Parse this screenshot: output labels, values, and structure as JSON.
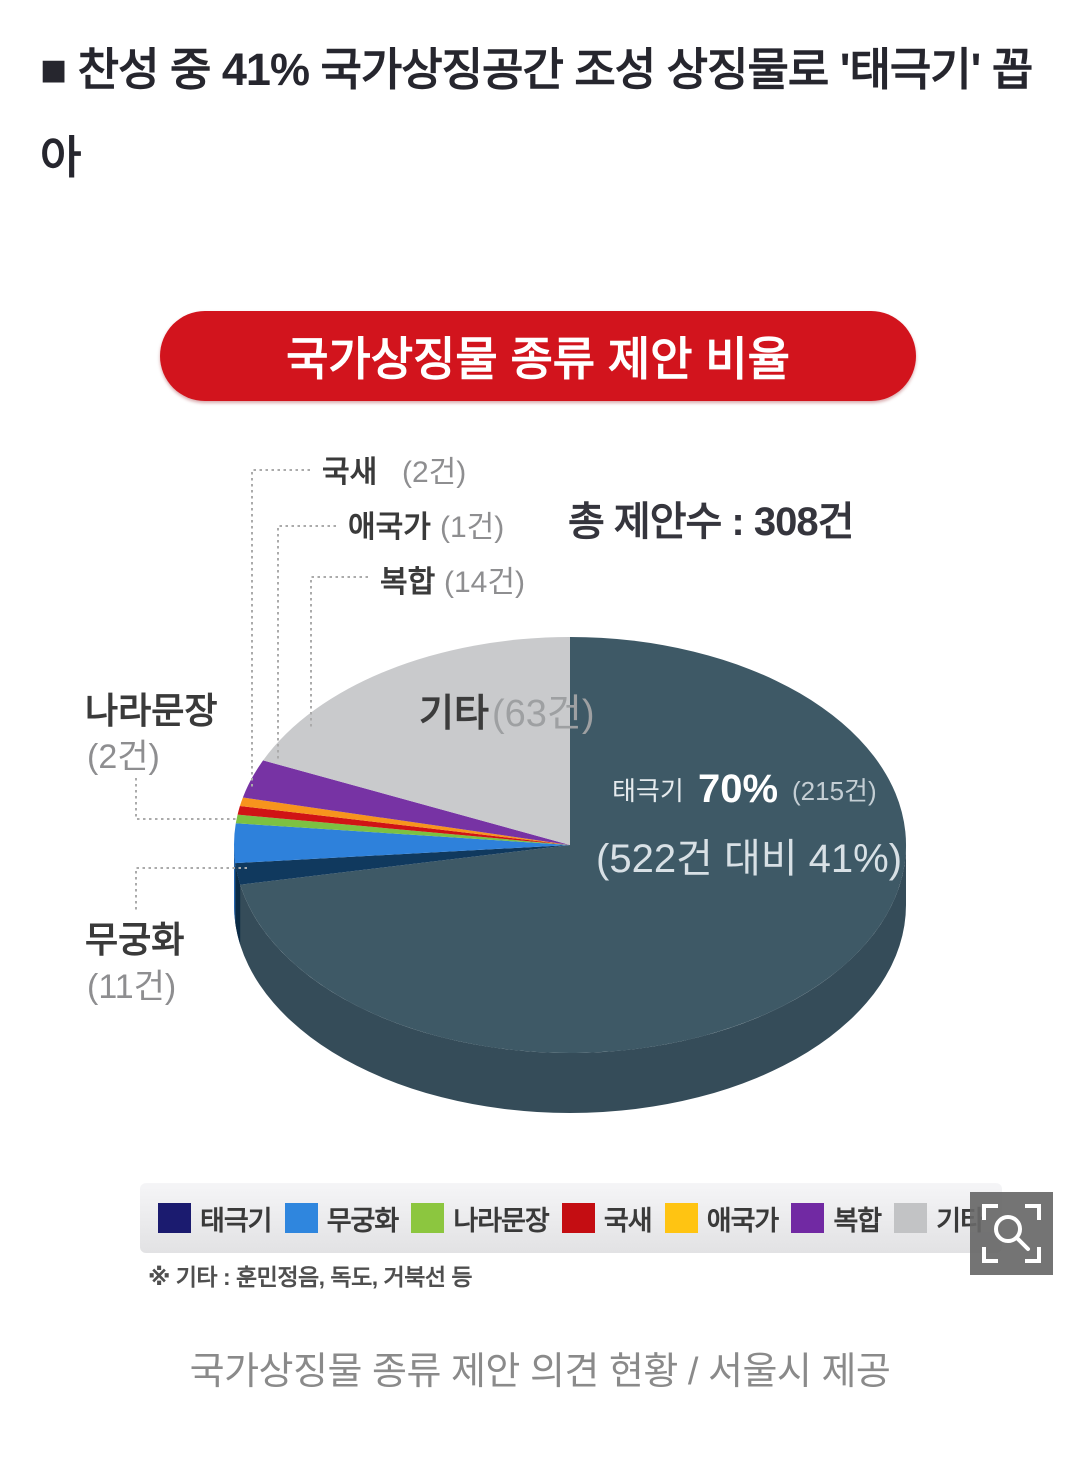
{
  "headline": {
    "text": "■ 찬성 중 41% 국가상징공간 조성 상징물로 '태극기' 꼽아"
  },
  "banner": {
    "title": "국가상징물 종류 제안 비율",
    "bg": "#d2141d",
    "text_color": "#ffffff"
  },
  "chart_data": {
    "type": "pie",
    "style": "3d-pie",
    "title": "국가상징물 종류 제안 비율",
    "total_label": "총 제안수 : 308건",
    "total_count": 308,
    "unit": "건",
    "categories": [
      "태극기",
      "무궁화",
      "나라문장",
      "국새",
      "애국가",
      "복합",
      "기타"
    ],
    "values": [
      215,
      11,
      2,
      2,
      1,
      14,
      63
    ],
    "percent_of_total": {
      "태극기": "70%"
    },
    "annotations": [
      "태극기 70% (215건)",
      "(522건 대비 41%)",
      "총 제안수 : 308건"
    ],
    "legend_position": "bottom",
    "legend_colors": [
      "#1b1b6f",
      "#2f86de",
      "#8cc63f",
      "#c40d12",
      "#ffc412",
      "#7129a3",
      "#c2c3c5"
    ],
    "render": {
      "top_slices": [
        {
          "name": "taegeukgi-top",
          "color": "#3e5966"
        },
        {
          "name": "taegeukgi-edge",
          "color": "#10395e"
        },
        {
          "name": "mugunghwa",
          "color": "#2e81db"
        },
        {
          "name": "naramunjang",
          "color": "#7cc142"
        },
        {
          "name": "guksae",
          "color": "#d01315"
        },
        {
          "name": "aegukga",
          "color": "#f7941d"
        },
        {
          "name": "bokhap",
          "color": "#7733a4"
        },
        {
          "name": "gita",
          "color": "#c9cacc"
        }
      ],
      "side_colors": {
        "main": "#354c59",
        "taegeukgi_edge": "#0b2b45",
        "mugunghwa": "#2063ae"
      }
    }
  },
  "pie": {
    "total_label": "총 제안수 : 308건",
    "callouts": {
      "guksae": {
        "name": "국새",
        "count": "(2건)"
      },
      "aegukga": {
        "name": "애국가",
        "count": "(1건)"
      },
      "bokhap": {
        "name": "복합",
        "count": "(14건)"
      },
      "naramunjang": {
        "name": "나라문장",
        "count": "(2건)"
      },
      "mugunghwa": {
        "name": "무궁화",
        "count": "(11건)"
      },
      "gita": {
        "name": "기타",
        "count": "(63건)"
      }
    },
    "main_slice": {
      "name": "태극기",
      "pct": "70%",
      "count": "(215건)",
      "note": "(522건 대비 41%)"
    }
  },
  "legend": {
    "items": [
      {
        "label": "태극기",
        "color": "#1b1b6f"
      },
      {
        "label": "무궁화",
        "color": "#2f86de"
      },
      {
        "label": "나라문장",
        "color": "#8cc63f"
      },
      {
        "label": "국새",
        "color": "#c40d12"
      },
      {
        "label": "애국가",
        "color": "#ffc412"
      },
      {
        "label": "복합",
        "color": "#7129a3"
      },
      {
        "label": "기타",
        "color": "#c2c3c5"
      }
    ]
  },
  "footnote": {
    "text": "※ 기타 : 훈민정음, 독도, 거북선 등"
  },
  "caption": {
    "text": "국가상징물 종류 제안 의견 현황 / 서울시 제공"
  },
  "zoom_button": {
    "bg": "rgba(104,104,104,0.92)",
    "icon": "magnifier-expand"
  }
}
